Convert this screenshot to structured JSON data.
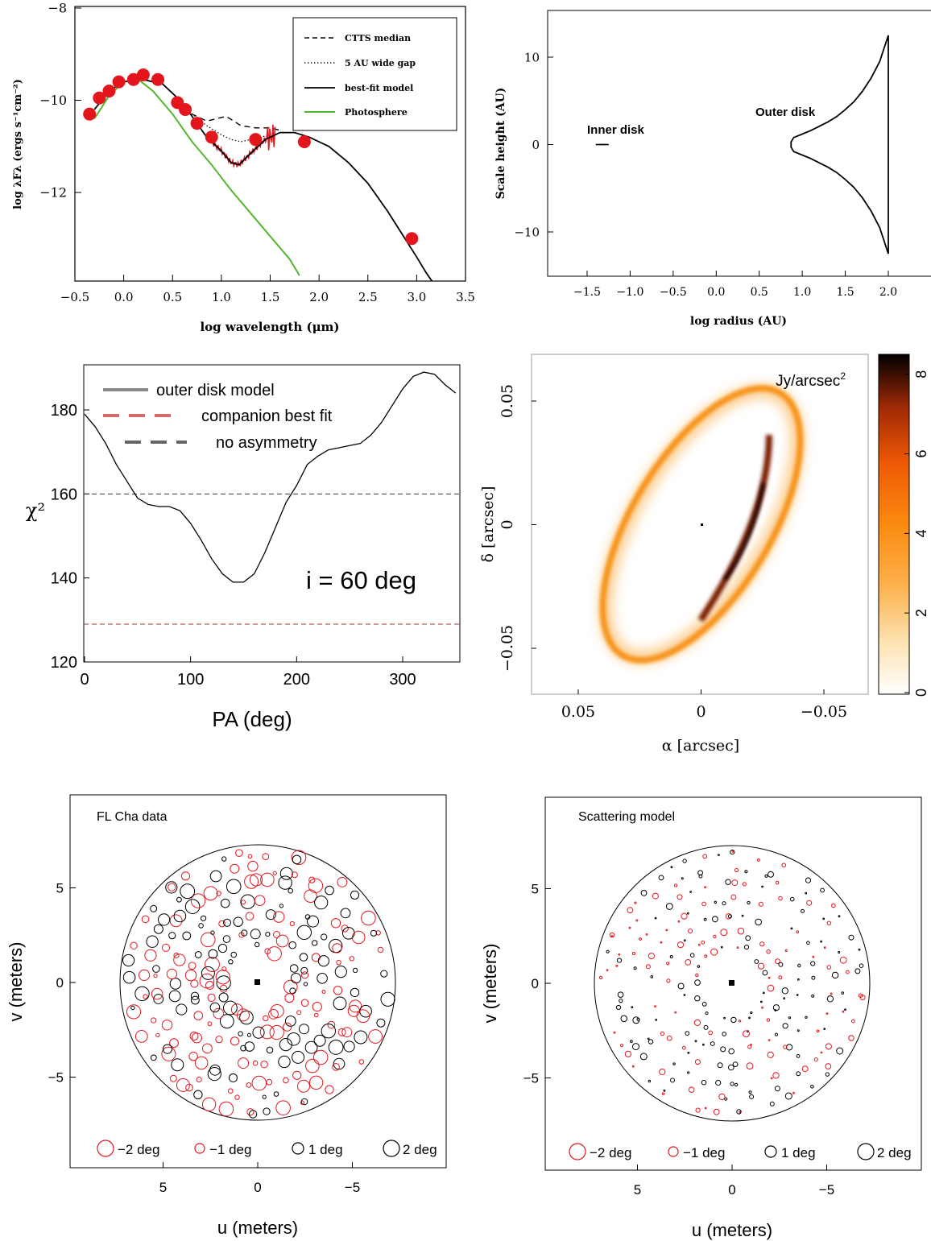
{
  "chart_data": [
    {
      "type": "line",
      "panel": "sed",
      "xlabel": "log wavelength (μm)",
      "ylabel": "log λFλ (ergs s⁻¹cm⁻²)",
      "xlim": [
        -0.5,
        3.5
      ],
      "ylim": [
        -14,
        -8
      ],
      "xticks": [
        "−0.5",
        "0.0",
        "0.5",
        "1.0",
        "1.5",
        "2.0",
        "2.5",
        "3.0",
        "3.5"
      ],
      "yticks": [
        "−8",
        "−10",
        "−12"
      ],
      "legend": {
        "placement": "top-right",
        "entries": [
          "CTTS median",
          "5 AU wide gap",
          "best-fit model",
          "Photosphere"
        ]
      },
      "series": [
        {
          "name": "best-fit model",
          "color": "#000000",
          "x": [
            -0.3,
            -0.15,
            0,
            0.2,
            0.4,
            0.55,
            0.7,
            0.85,
            1.0,
            1.1,
            1.18,
            1.3,
            1.45,
            1.6,
            1.75,
            1.9,
            2.1,
            2.3,
            2.5,
            2.7,
            2.85,
            3.0,
            3.1,
            3.2
          ],
          "y": [
            -10.2,
            -9.8,
            -9.6,
            -9.55,
            -9.65,
            -9.95,
            -10.35,
            -10.8,
            -11.1,
            -11.35,
            -11.4,
            -11.15,
            -10.85,
            -10.7,
            -10.7,
            -10.8,
            -11.0,
            -11.35,
            -11.8,
            -12.4,
            -12.9,
            -13.4,
            -13.75,
            -14.05
          ]
        },
        {
          "name": "CTTS median",
          "color": "#000000",
          "x": [
            0.55,
            0.7,
            0.85,
            0.95,
            1.05,
            1.2,
            1.35,
            1.5,
            1.6
          ],
          "y": [
            -10.0,
            -10.3,
            -10.45,
            -10.4,
            -10.35,
            -10.55,
            -10.6,
            -10.6,
            -10.65
          ]
        },
        {
          "name": "5 AU wide gap",
          "color": "#000000",
          "x": [
            0.55,
            0.7,
            0.85,
            1.0,
            1.1,
            1.2,
            1.3,
            1.4,
            1.5
          ],
          "y": [
            -10.0,
            -10.3,
            -10.55,
            -10.75,
            -10.85,
            -10.9,
            -10.85,
            -10.8,
            -10.75
          ]
        },
        {
          "name": "Photosphere",
          "color": "#55b52e",
          "x": [
            -0.3,
            -0.15,
            0,
            0.15,
            0.3,
            0.5,
            0.7,
            0.9,
            1.1,
            1.3,
            1.5,
            1.7,
            1.8
          ],
          "y": [
            -10.4,
            -9.9,
            -9.6,
            -9.55,
            -9.8,
            -10.3,
            -10.9,
            -11.4,
            -11.95,
            -12.45,
            -12.95,
            -13.45,
            -13.8
          ]
        }
      ],
      "points": {
        "color": "#e3161e",
        "x": [
          -0.35,
          -0.25,
          -0.15,
          -0.05,
          0.1,
          0.2,
          0.35,
          0.55,
          0.63,
          0.75,
          0.9,
          1.35,
          1.85,
          2.95
        ],
        "y": [
          -10.3,
          -9.95,
          -9.8,
          -9.6,
          -9.55,
          -9.45,
          -9.55,
          -10.05,
          -10.2,
          -10.5,
          -10.8,
          -10.85,
          -10.9,
          -13.0
        ]
      }
    },
    {
      "type": "line",
      "panel": "scale-height",
      "xlabel": "log radius (AU)",
      "ylabel": "Scale height (AU)",
      "xlim": [
        -2.0,
        2.6
      ],
      "ylim": [
        -15,
        15
      ],
      "xticks": [
        "−1.5",
        "−1.0",
        "−0.5",
        "0.0",
        "0.5",
        "1.0",
        "1.5",
        "2.0"
      ],
      "yticks": [
        "10",
        "0",
        "−10"
      ],
      "annotations": [
        "Inner disk",
        "Outer disk"
      ],
      "inner_disk": {
        "x": [
          -1.4,
          -1.25
        ],
        "y": 0
      },
      "outer_disk_upper": {
        "x": [
          0.87,
          0.9,
          1.0,
          1.1,
          1.2,
          1.3,
          1.4,
          1.5,
          1.6,
          1.7,
          1.8,
          1.9,
          2.0
        ],
        "y": [
          0.3,
          0.8,
          1.2,
          1.6,
          2.1,
          2.6,
          3.2,
          4.0,
          4.9,
          6.1,
          7.6,
          9.5,
          12.5
        ]
      }
    },
    {
      "type": "line",
      "panel": "chi2",
      "xlabel": "PA (deg)",
      "ylabel": "χ²",
      "xlim": [
        0,
        350
      ],
      "ylim": [
        120,
        190
      ],
      "xticks": [
        "0",
        "100",
        "200",
        "300"
      ],
      "yticks": [
        "120",
        "140",
        "160",
        "180"
      ],
      "legend": {
        "placement": "top-left",
        "entries": [
          "outer disk model",
          "companion best fit",
          "no asymmetry"
        ]
      },
      "annotation": "i = 60 deg",
      "reference_lines": [
        {
          "name": "no asymmetry",
          "y": 160,
          "color": "#333333"
        },
        {
          "name": "companion best fit",
          "y": 129,
          "color": "#a33a3a"
        }
      ],
      "series": [
        {
          "name": "outer disk model",
          "color": "#000000",
          "x": [
            0,
            10,
            20,
            30,
            40,
            50,
            60,
            70,
            80,
            90,
            100,
            110,
            120,
            130,
            140,
            150,
            160,
            170,
            180,
            190,
            200,
            210,
            220,
            230,
            240,
            250,
            260,
            270,
            280,
            290,
            300,
            310,
            320,
            330,
            340,
            350
          ],
          "y": [
            179,
            176,
            172,
            167,
            163,
            159,
            157.5,
            157,
            157,
            156,
            153,
            149,
            144.5,
            141,
            139,
            139,
            141,
            146,
            152,
            158,
            162,
            167,
            169,
            170.5,
            171,
            171.5,
            172,
            174,
            177,
            181,
            185,
            188,
            189,
            188.5,
            186,
            184
          ]
        }
      ]
    },
    {
      "type": "heatmap",
      "panel": "image",
      "xlabel": "α [arcsec]",
      "ylabel": "δ [arcsec]",
      "xlim": [
        0.07,
        -0.07
      ],
      "ylim": [
        -0.07,
        0.07
      ],
      "xticks": [
        "0.05",
        "0",
        "−0.05"
      ],
      "yticks": [
        "0.05",
        "0",
        "−0.05"
      ],
      "unit_label": "Jy/arcsec",
      "unit_sup": "2",
      "colorbar": {
        "range": [
          0,
          8.5
        ],
        "ticks": [
          "0",
          "2",
          "4",
          "6",
          "8"
        ]
      }
    },
    {
      "type": "scatter",
      "panel": "uv-data",
      "title": "FL Cha data",
      "xlabel": "u (meters)",
      "ylabel": "v (meters)",
      "xlim": [
        10,
        -10
      ],
      "ylim": [
        -10,
        10
      ],
      "xticks": [
        "5",
        "0",
        "−5"
      ],
      "yticks": [
        "5",
        "0",
        "−5"
      ],
      "legend": [
        "−2 deg",
        "−1 deg",
        "1 deg",
        "2 deg"
      ],
      "seed": 17,
      "scale": 1.0
    },
    {
      "type": "scatter",
      "panel": "uv-model",
      "title": "Scattering model",
      "xlabel": "u (meters)",
      "ylabel": "v (meters)",
      "xlim": [
        10,
        -10
      ],
      "ylim": [
        -10,
        10
      ],
      "xticks": [
        "5",
        "0",
        "−5"
      ],
      "yticks": [
        "5",
        "0",
        "−5"
      ],
      "legend": [
        "−2 deg",
        "−1 deg",
        "1 deg",
        "2 deg"
      ],
      "seed": 91,
      "scale": 0.45
    }
  ]
}
